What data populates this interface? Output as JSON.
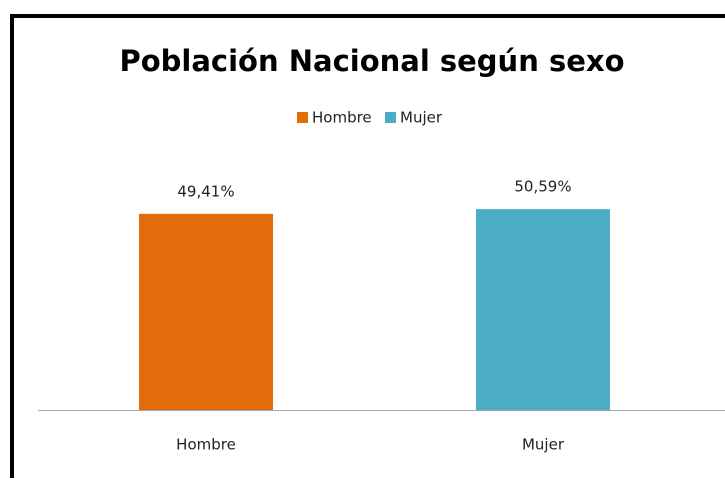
{
  "chart_data": {
    "type": "bar",
    "title": "Población Nacional según sexo",
    "categories": [
      "Hombre",
      "Mujer"
    ],
    "values": [
      49.41,
      50.59
    ],
    "value_labels": [
      "49,41%",
      "50,59%"
    ],
    "colors": [
      "#e36c0a",
      "#4bacc6"
    ],
    "legend": "top"
  }
}
